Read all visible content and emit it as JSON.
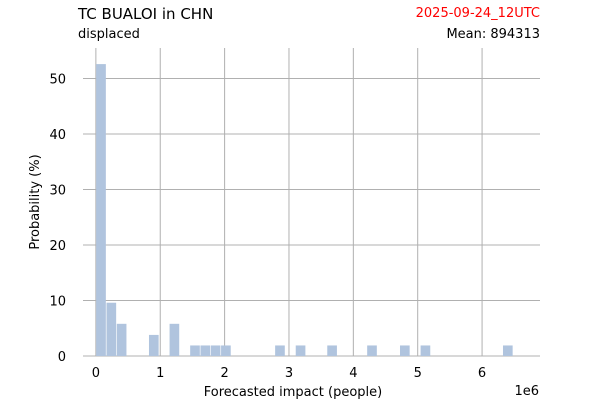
{
  "header": {
    "title": "TC BUALOI in CHN",
    "subtitle": "displaced",
    "date": "2025-09-24_12UTC",
    "mean_label": "Mean: 894313"
  },
  "colors": {
    "bar": "#b0c4de",
    "grid": "#b0b0b0",
    "date": "#ff0000"
  },
  "chart_data": {
    "type": "bar",
    "xlabel": "Forecasted impact (people)",
    "ylabel": "Probability (%)",
    "x_offset_label": "1e6",
    "x_scale": 1000000,
    "xlim": [
      -0.2,
      6.9
    ],
    "ylim": [
      0,
      55.5
    ],
    "xticks": [
      0,
      1,
      2,
      3,
      4,
      5,
      6
    ],
    "yticks": [
      0,
      10,
      20,
      30,
      40,
      50
    ],
    "bar_width": 0.15,
    "bars": [
      {
        "x": 0.08,
        "y": 52.6
      },
      {
        "x": 0.24,
        "y": 9.6
      },
      {
        "x": 0.4,
        "y": 5.8
      },
      {
        "x": 0.9,
        "y": 3.8
      },
      {
        "x": 1.22,
        "y": 5.8
      },
      {
        "x": 1.54,
        "y": 1.9
      },
      {
        "x": 1.7,
        "y": 1.9
      },
      {
        "x": 1.86,
        "y": 1.9
      },
      {
        "x": 2.02,
        "y": 1.9
      },
      {
        "x": 2.86,
        "y": 1.9
      },
      {
        "x": 3.18,
        "y": 1.9
      },
      {
        "x": 3.67,
        "y": 1.9
      },
      {
        "x": 4.29,
        "y": 1.9
      },
      {
        "x": 4.8,
        "y": 1.9
      },
      {
        "x": 5.12,
        "y": 1.9
      },
      {
        "x": 6.4,
        "y": 1.9
      }
    ]
  }
}
